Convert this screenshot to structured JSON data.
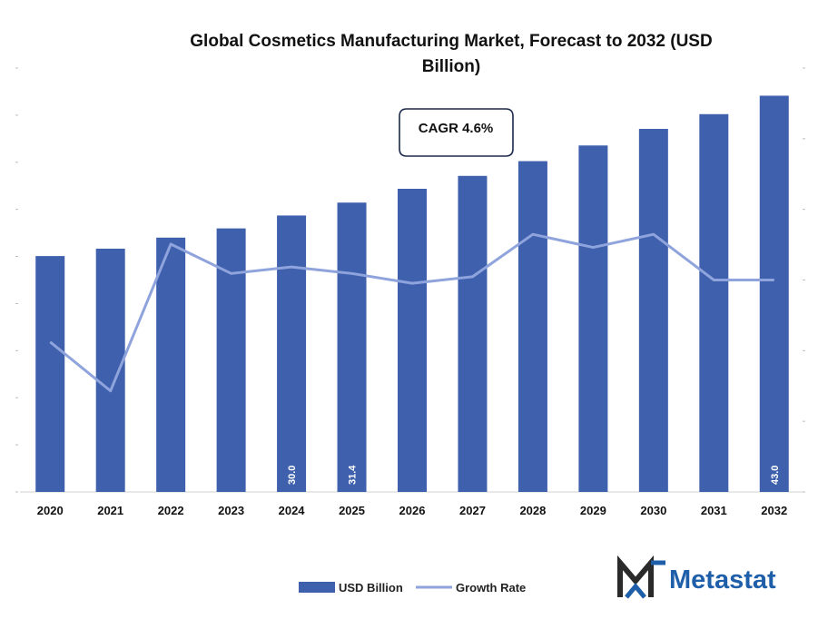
{
  "chart_data": {
    "type": "bar",
    "title_line1": "Global Cosmetics Manufacturing Market, Forecast to 2032 (USD",
    "title_line2": "Billion)",
    "categories": [
      "2020",
      "2021",
      "2022",
      "2023",
      "2024",
      "2025",
      "2026",
      "2027",
      "2028",
      "2029",
      "2030",
      "2031",
      "2032"
    ],
    "series": [
      {
        "name": "USD Billion",
        "kind": "bar",
        "values": [
          25.6,
          26.4,
          27.6,
          28.6,
          30.0,
          31.4,
          32.9,
          34.3,
          35.9,
          37.6,
          39.4,
          41.0,
          43.0
        ],
        "data_labels": {
          "4": "30.0",
          "5": "31.4",
          "12": "43.0"
        },
        "color": "#3f61ad"
      },
      {
        "name": "Growth Rate",
        "kind": "line",
        "values": [
          4.6,
          3.1,
          7.6,
          6.7,
          6.9,
          6.7,
          6.4,
          6.6,
          7.9,
          7.5,
          7.9,
          6.5,
          6.5
        ],
        "color": "#8fa3dc"
      }
    ],
    "ylim_left": [
      0,
      46
    ],
    "ylim_right": [
      0,
      13
    ],
    "annotation": "CAGR 4.6%",
    "legend_position": "bottom"
  },
  "brand": {
    "name": "Metastat",
    "color": "#1f5faa",
    "mark_color": "#2a2a2a"
  }
}
